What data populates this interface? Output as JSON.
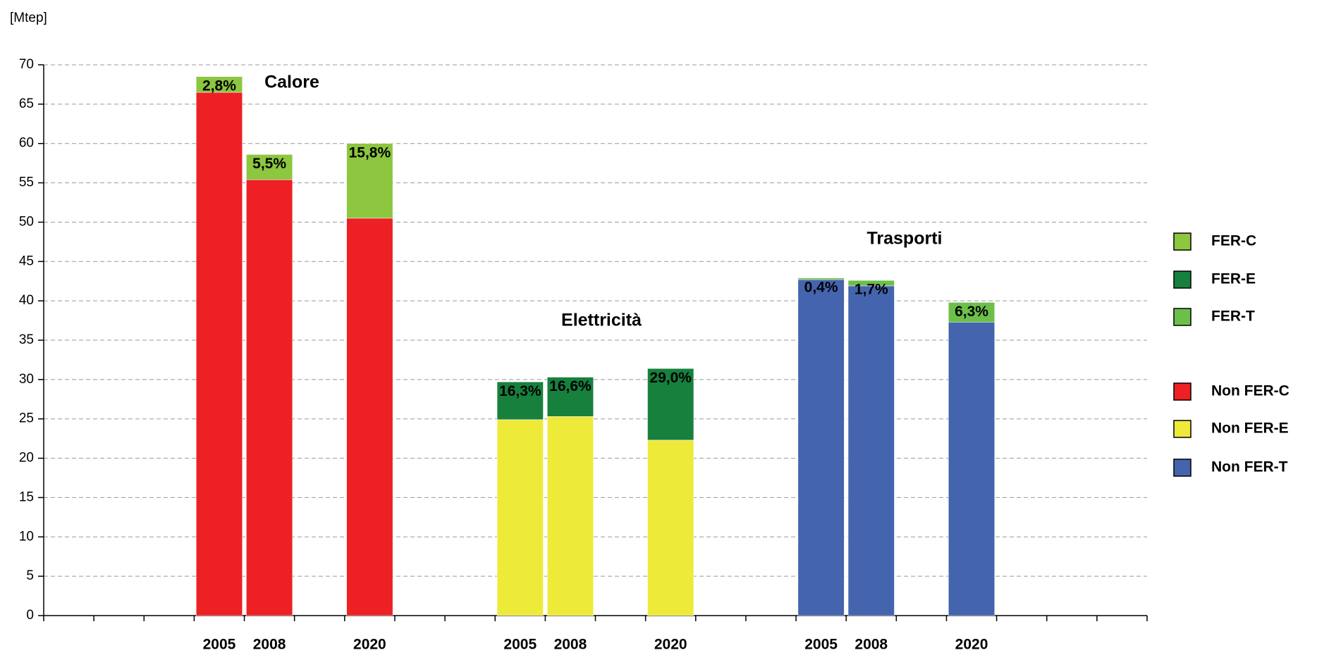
{
  "chart_data": {
    "type": "bar",
    "stacked": true,
    "y_label": "[Mtep]",
    "categories": [
      null,
      null,
      null,
      "2005",
      "2008",
      null,
      "2020",
      null,
      null,
      "2005",
      "2008",
      null,
      "2020",
      null,
      null,
      "2005",
      "2008",
      null,
      "2020",
      null,
      null,
      null
    ],
    "annotations": [
      "Calore",
      "Elettricità",
      "Trasporti"
    ],
    "series": [
      {
        "name": "FER-C",
        "color": "#8dc63f",
        "values": [
          null,
          null,
          null,
          2.0,
          3.2,
          null,
          9.5,
          null,
          null,
          null,
          null,
          null,
          null,
          null,
          null,
          null,
          null,
          null,
          null,
          null,
          null,
          null
        ],
        "labels": [
          null,
          null,
          null,
          "2,8%",
          "5,5%",
          null,
          "15,8%",
          null,
          null,
          null,
          null,
          null,
          null,
          null,
          null,
          null,
          null,
          null,
          null,
          null,
          null,
          null
        ]
      },
      {
        "name": "FER-E",
        "color": "#17803d",
        "values": [
          null,
          null,
          null,
          null,
          null,
          null,
          null,
          null,
          null,
          4.8,
          5.0,
          null,
          9.1,
          null,
          null,
          null,
          null,
          null,
          null,
          null,
          null,
          null
        ],
        "labels": [
          null,
          null,
          null,
          null,
          null,
          null,
          null,
          null,
          null,
          "16,3%",
          "16,6%",
          null,
          "29,0%",
          null,
          null,
          null,
          null,
          null,
          null,
          null,
          null,
          null
        ]
      },
      {
        "name": "FER-T",
        "color": "#6cc04a",
        "values": [
          null,
          null,
          null,
          null,
          null,
          null,
          null,
          null,
          null,
          null,
          null,
          null,
          null,
          null,
          null,
          0.2,
          0.7,
          null,
          2.5,
          null,
          null,
          null
        ],
        "labels": [
          null,
          null,
          null,
          null,
          null,
          null,
          null,
          null,
          null,
          null,
          null,
          null,
          null,
          null,
          null,
          "0,4%",
          "1,7%",
          null,
          "6,3%",
          null,
          null,
          null
        ]
      },
      {
        "name": "Non FER-C",
        "color": "#ed2024",
        "values": [
          null,
          null,
          null,
          66.5,
          55.4,
          null,
          50.5,
          null,
          null,
          null,
          null,
          null,
          null,
          null,
          null,
          null,
          null,
          null,
          null,
          null,
          null,
          null
        ]
      },
      {
        "name": "Non FER-E",
        "color": "#eeea3a",
        "values": [
          null,
          null,
          null,
          null,
          null,
          null,
          null,
          null,
          null,
          24.9,
          25.3,
          null,
          22.3,
          null,
          null,
          null,
          null,
          null,
          null,
          null,
          null,
          null
        ]
      },
      {
        "name": "Non FER-T",
        "color": "#4464ad",
        "values": [
          null,
          null,
          null,
          null,
          null,
          null,
          null,
          null,
          null,
          null,
          null,
          null,
          null,
          null,
          null,
          42.7,
          41.9,
          null,
          37.3,
          null,
          null,
          null
        ]
      }
    ],
    "ylim": [
      0,
      70
    ],
    "yticks": [
      0,
      5,
      10,
      15,
      20,
      25,
      30,
      35,
      40,
      45,
      50,
      55,
      60,
      65,
      70
    ],
    "grid": true
  }
}
